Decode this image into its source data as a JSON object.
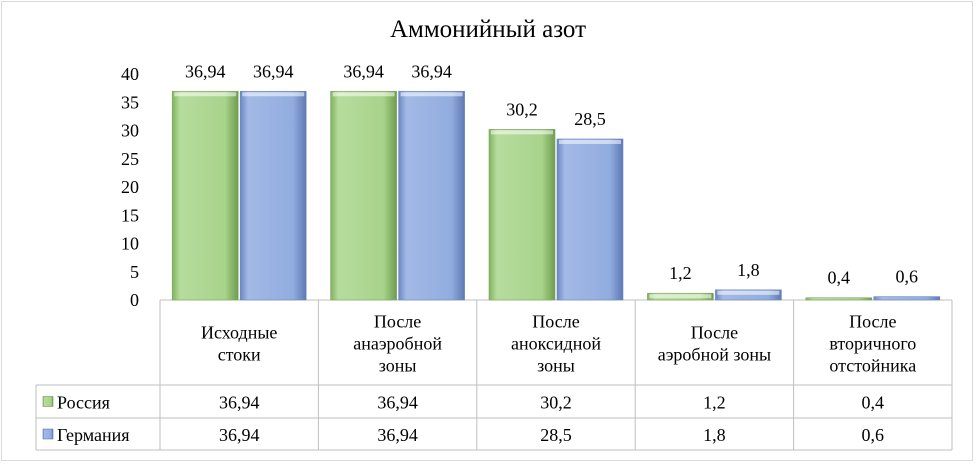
{
  "chart_data": {
    "type": "bar",
    "title": "Аммонийный азот",
    "categories": [
      [
        "Исходные",
        "стоки"
      ],
      [
        "После",
        "анаэробной",
        "зоны"
      ],
      [
        "После",
        "аноксидной",
        "зоны"
      ],
      [
        "После",
        "аэробной зоны"
      ],
      [
        "После",
        "вторичного",
        "отстойника"
      ]
    ],
    "series": [
      {
        "name": "Россия",
        "values": [
          36.94,
          36.94,
          30.2,
          1.2,
          0.4
        ],
        "labels": [
          "36,94",
          "36,94",
          "30,2",
          "1,2",
          "0,4"
        ],
        "color": "#a9d18e"
      },
      {
        "name": "Германия",
        "values": [
          36.94,
          36.94,
          28.5,
          1.8,
          0.6
        ],
        "labels": [
          "36,94",
          "36,94",
          "28,5",
          "1,8",
          "0,6"
        ],
        "color": "#8faadc"
      }
    ],
    "ylim": [
      0,
      40
    ],
    "yticks": [
      0,
      5,
      10,
      15,
      20,
      25,
      30,
      35,
      40
    ],
    "grid": false,
    "legend": "data-table"
  }
}
